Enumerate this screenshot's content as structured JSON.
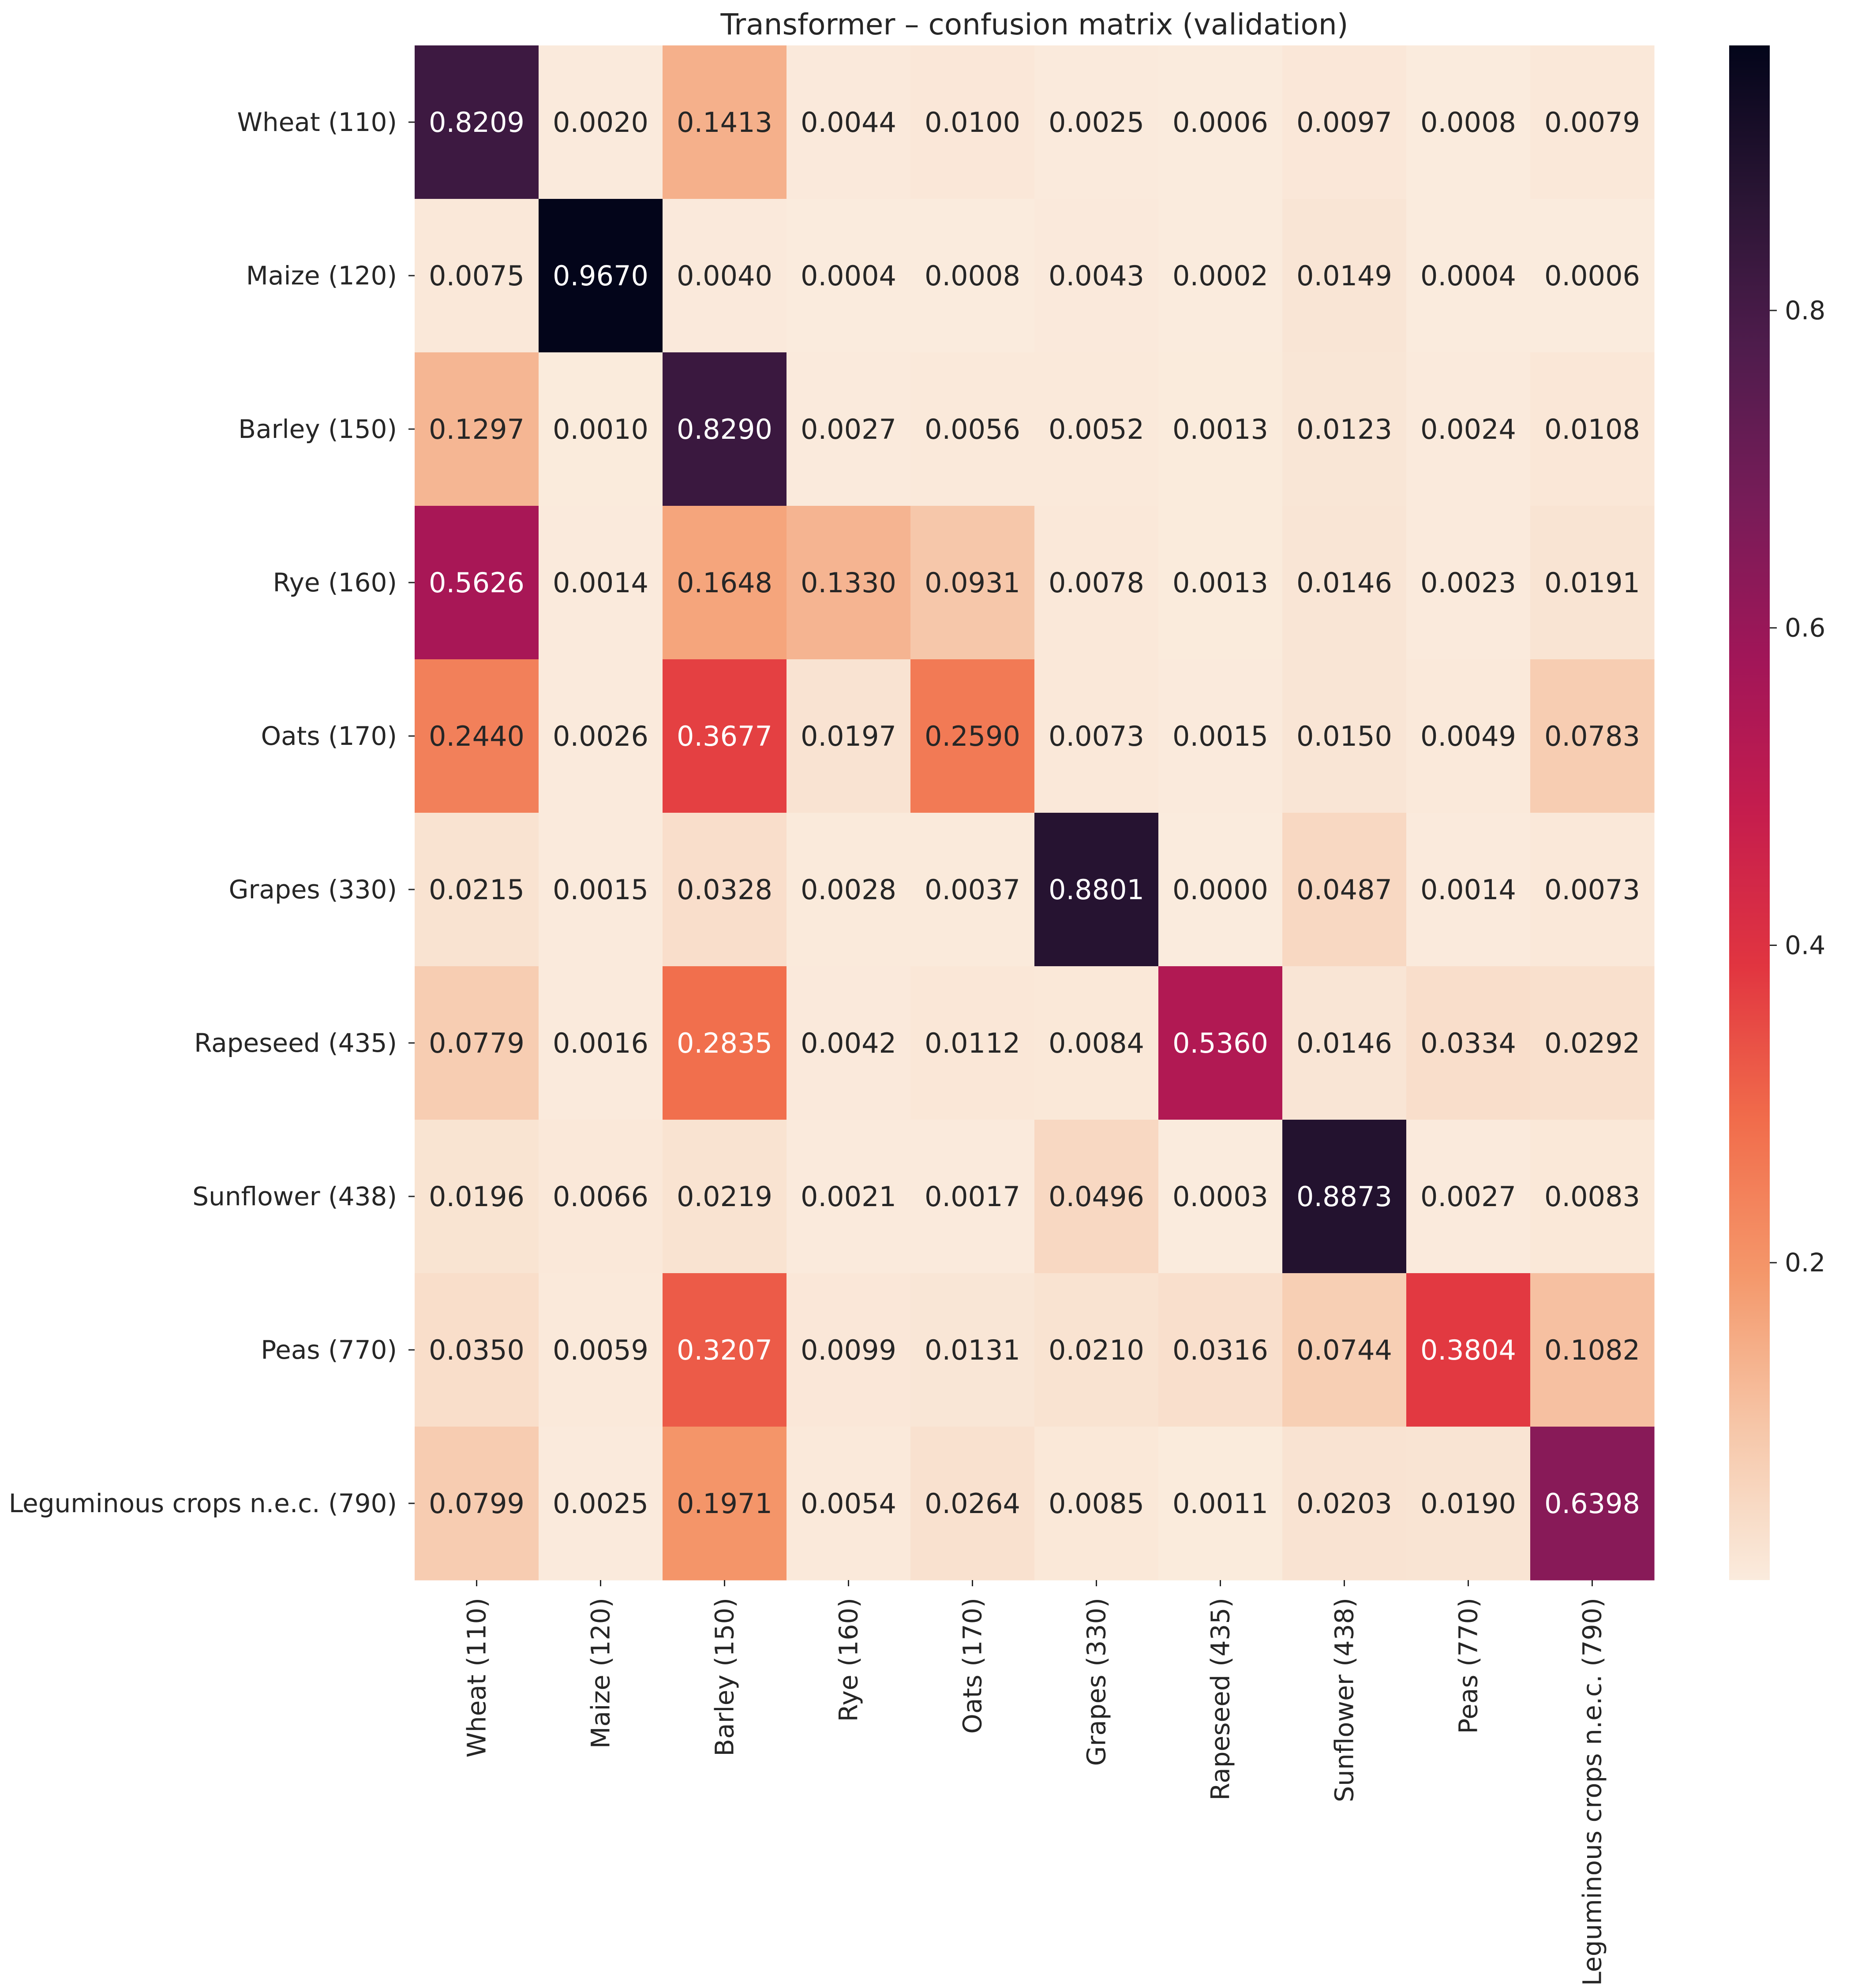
{
  "chart_data": {
    "type": "heatmap",
    "title": "Transformer – confusion matrix (validation)",
    "xlabel": "",
    "ylabel": "",
    "row_labels": [
      "Wheat (110)",
      "Maize (120)",
      "Barley (150)",
      "Rye (160)",
      "Oats (170)",
      "Grapes (330)",
      "Rapeseed (435)",
      "Sunflower (438)",
      "Peas (770)",
      "Leguminous crops n.e.c. (790)"
    ],
    "column_labels": [
      "Wheat (110)",
      "Maize (120)",
      "Barley (150)",
      "Rye (160)",
      "Oats (170)",
      "Grapes (330)",
      "Rapeseed (435)",
      "Sunflower (438)",
      "Peas (770)",
      "Leguminous crops n.e.c. (790)"
    ],
    "values": [
      [
        0.8209,
        0.002,
        0.1413,
        0.0044,
        0.01,
        0.0025,
        0.0006,
        0.0097,
        0.0008,
        0.0079
      ],
      [
        0.0075,
        0.967,
        0.004,
        0.0004,
        0.0008,
        0.0043,
        0.0002,
        0.0149,
        0.0004,
        0.0006
      ],
      [
        0.1297,
        0.001,
        0.829,
        0.0027,
        0.0056,
        0.0052,
        0.0013,
        0.0123,
        0.0024,
        0.0108
      ],
      [
        0.5626,
        0.0014,
        0.1648,
        0.133,
        0.0931,
        0.0078,
        0.0013,
        0.0146,
        0.0023,
        0.0191
      ],
      [
        0.244,
        0.0026,
        0.3677,
        0.0197,
        0.259,
        0.0073,
        0.0015,
        0.015,
        0.0049,
        0.0783
      ],
      [
        0.0215,
        0.0015,
        0.0328,
        0.0028,
        0.0037,
        0.8801,
        0.0,
        0.0487,
        0.0014,
        0.0073
      ],
      [
        0.0779,
        0.0016,
        0.2835,
        0.0042,
        0.0112,
        0.0084,
        0.536,
        0.0146,
        0.0334,
        0.0292
      ],
      [
        0.0196,
        0.0066,
        0.0219,
        0.0021,
        0.0017,
        0.0496,
        0.0003,
        0.8873,
        0.0027,
        0.0083
      ],
      [
        0.035,
        0.0059,
        0.3207,
        0.0099,
        0.0131,
        0.021,
        0.0316,
        0.0744,
        0.3804,
        0.1082
      ],
      [
        0.0799,
        0.0025,
        0.1971,
        0.0054,
        0.0264,
        0.0085,
        0.0011,
        0.0203,
        0.019,
        0.6398
      ]
    ],
    "value_format": "4 decimals",
    "colormap": "rocket_r",
    "color_range": [
      0.0,
      0.967
    ],
    "colorbar": {
      "ticks": [
        0.2,
        0.4,
        0.6,
        0.8
      ],
      "tick_labels": [
        "0.2",
        "0.4",
        "0.6",
        "0.8"
      ]
    },
    "grid": false,
    "legend": "colorbar-right"
  }
}
